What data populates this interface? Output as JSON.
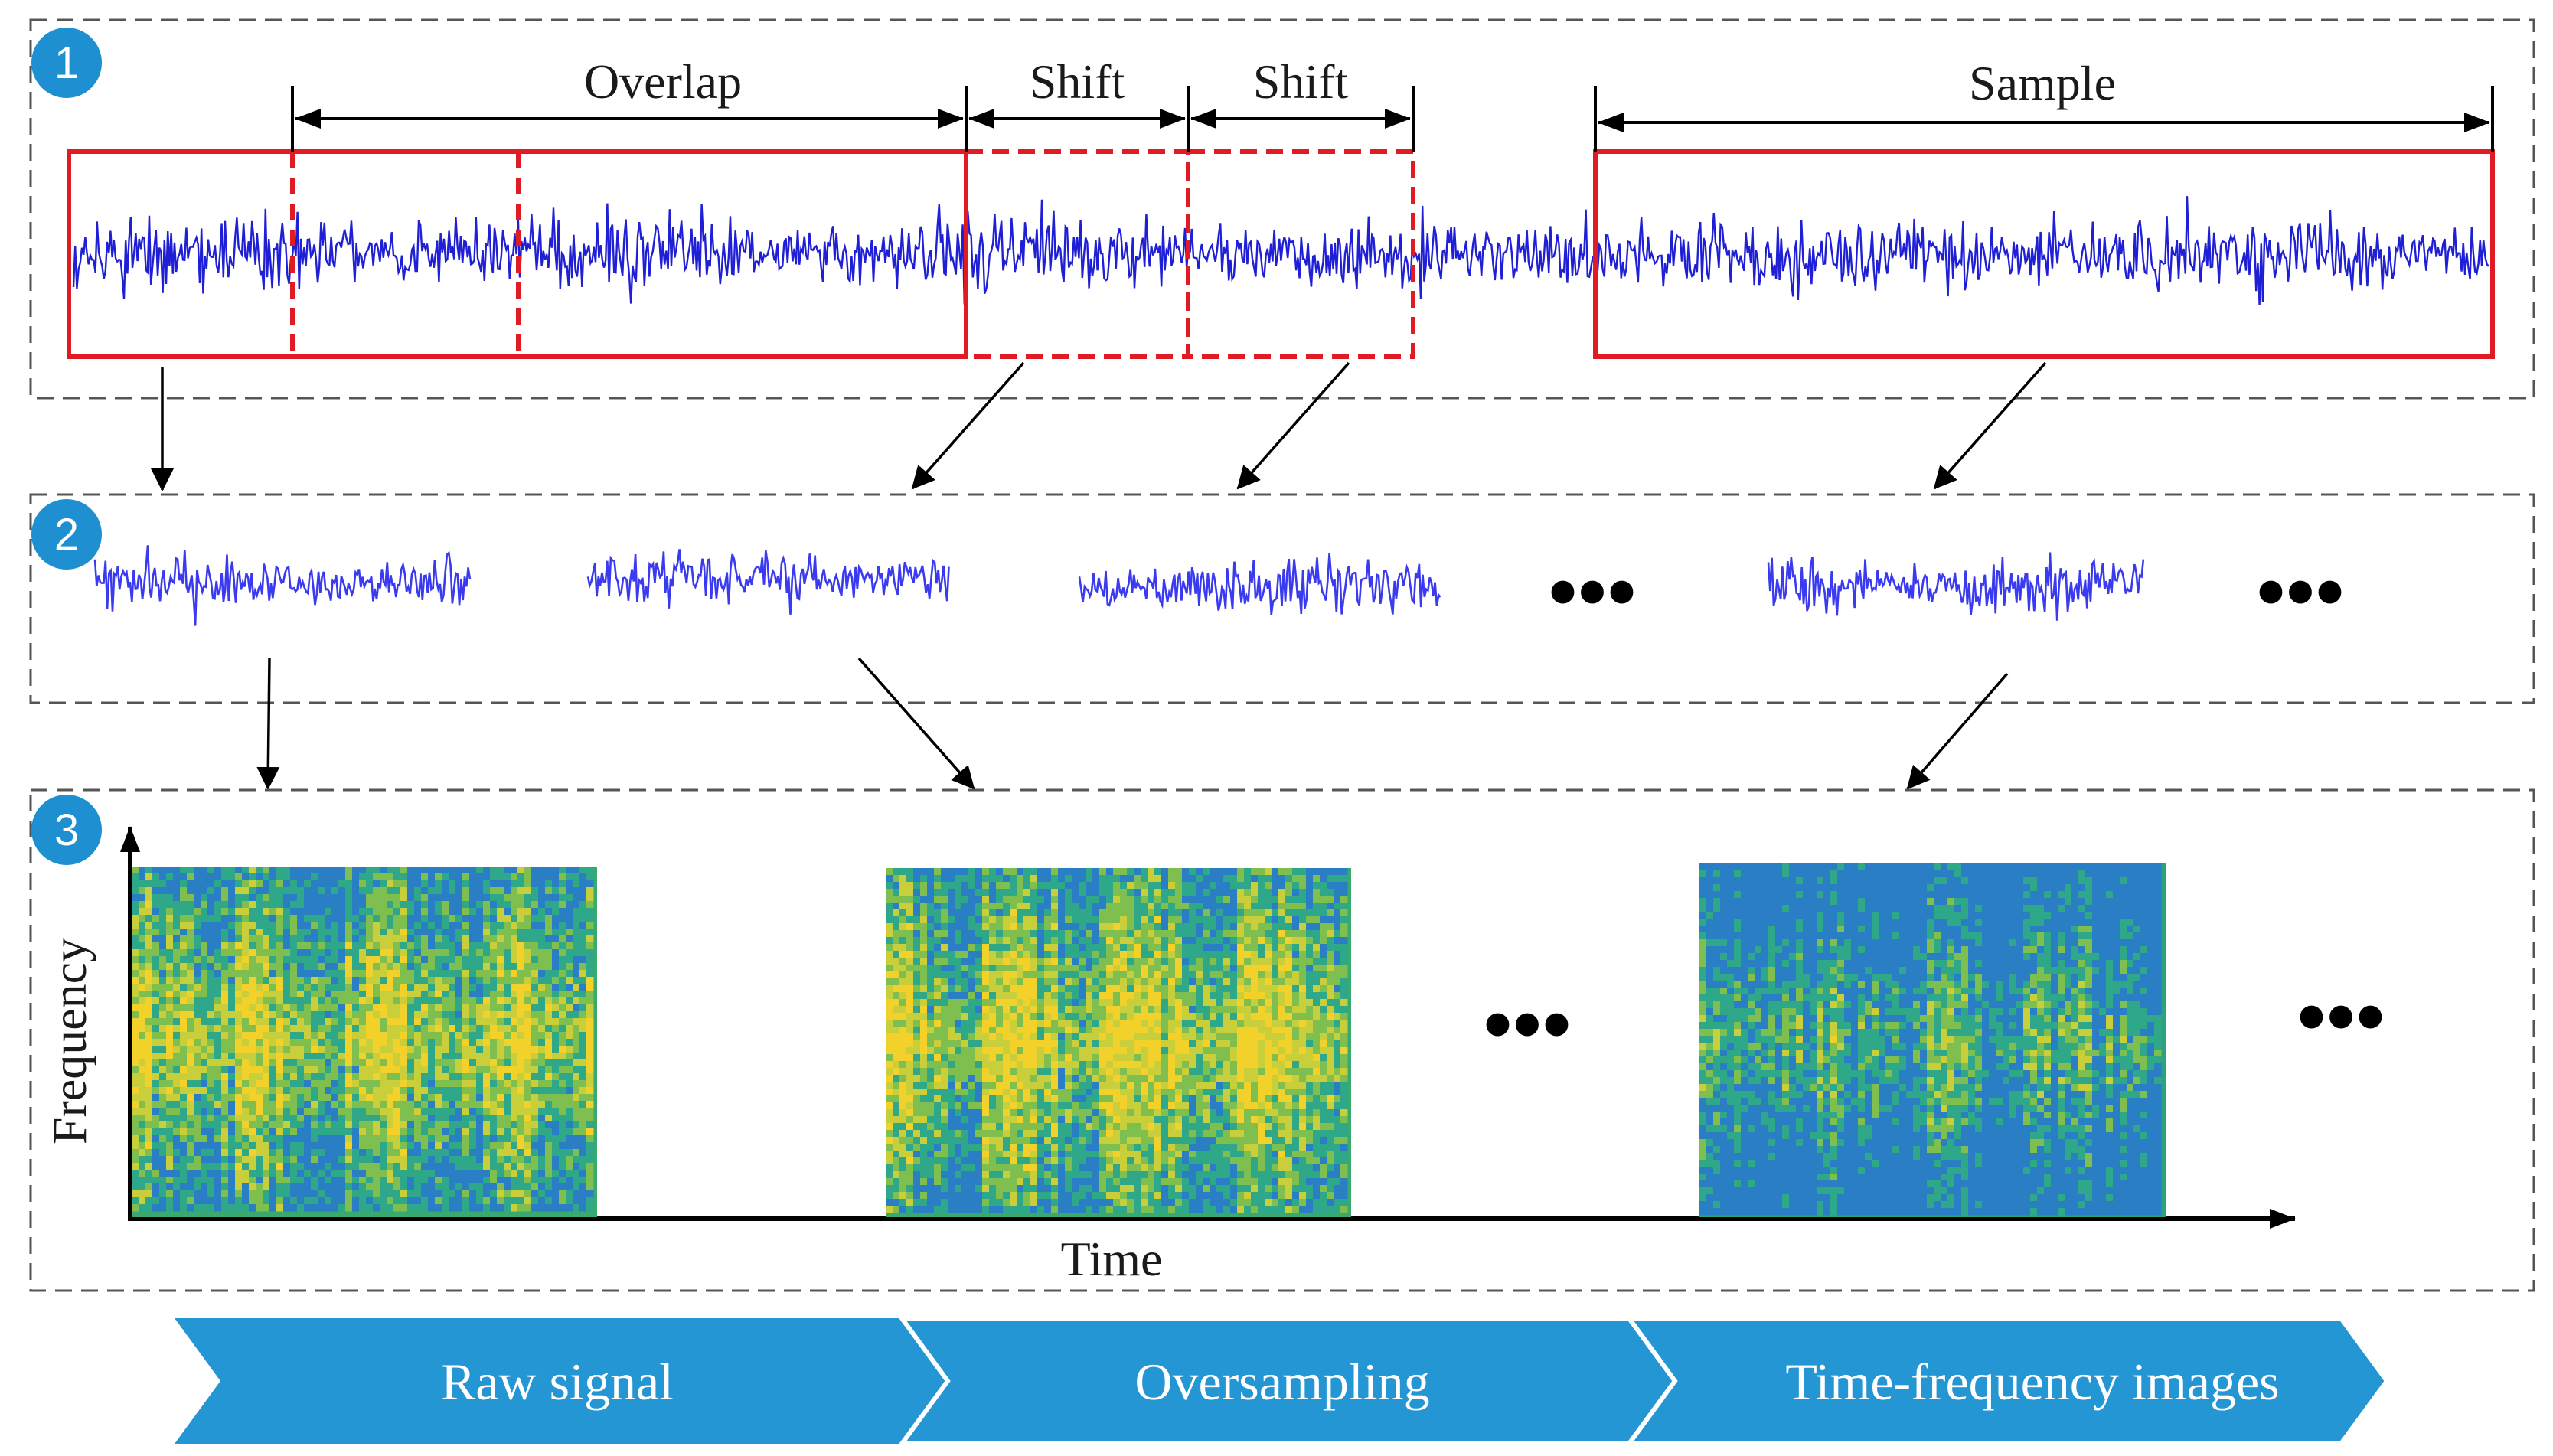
{
  "panels": {
    "p1": {
      "badge": "1"
    },
    "p2": {
      "badge": "2"
    },
    "p3": {
      "badge": "3"
    }
  },
  "labels": {
    "overlap": "Overlap",
    "shift1": "Shift",
    "shift2": "Shift",
    "sample": "Sample",
    "frequency": "Frequency",
    "time": "Time"
  },
  "ellipsis": "•••",
  "process": {
    "steps": [
      "Raw signal",
      "Oversampling",
      "Time-frequency images"
    ]
  },
  "colors": {
    "signal": "#1f1fd6",
    "window": "#e01b24",
    "badge": "#1e8fd0",
    "chevron": "#2596d4",
    "spec_low": "#1f6fbf",
    "spec_mid": "#22a98a",
    "spec_high": "#f2d22a"
  }
}
